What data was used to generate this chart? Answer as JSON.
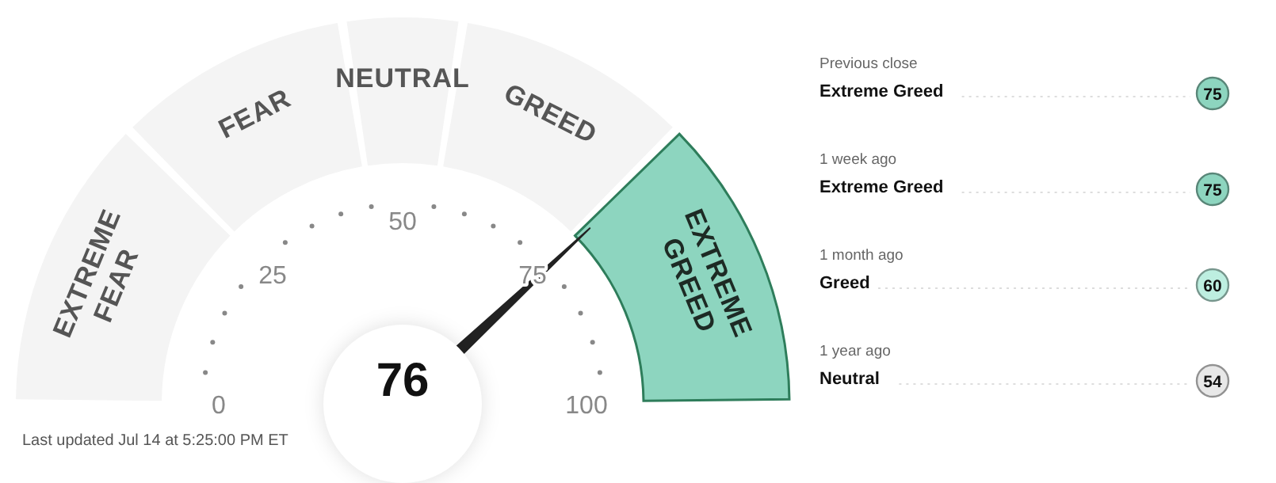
{
  "chart_data": [
    {
      "type": "donut",
      "categories": [
        "EXTREME FEAR",
        "FEAR",
        "NEUTRAL",
        "GREED",
        "EXTREME GREED"
      ],
      "values": [
        25,
        20,
        10,
        20,
        25
      ],
      "colors": [
        "#f4f4f4",
        "#f4f4f4",
        "#f4f4f4",
        "#f4f4f4",
        "#8dd5bf"
      ],
      "needle": "EXTREME GREED",
      "annotations": [
        "0",
        "25",
        "50",
        "75",
        "100",
        "76",
        "Last updated Jul 14 at 5:25:00 PM ET"
      ]
    },
    {
      "type": "other",
      "categories": [
        "Previous close",
        "1 week ago",
        "1 month ago",
        "1 year ago"
      ],
      "annotations": [
        "Extreme Greed",
        "75",
        "Extreme Greed",
        "75",
        "Greed",
        "60",
        "Neutral",
        "54"
      ],
      "colors": [
        "#8dd5bf",
        "#8dd5bf",
        "#bdeee0",
        "#e8e8e8"
      ]
    }
  ]
}
